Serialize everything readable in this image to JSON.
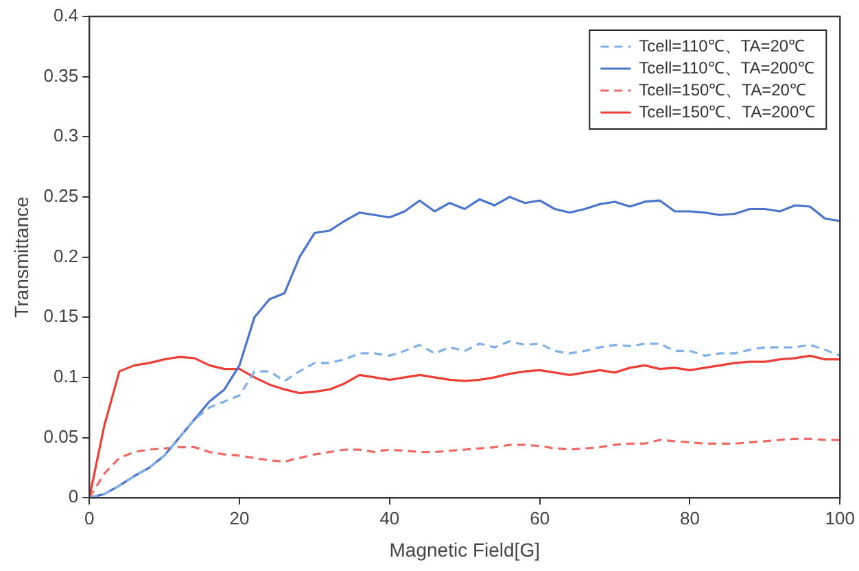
{
  "chart_data": {
    "type": "line",
    "xlabel": "Magnetic Field[G]",
    "ylabel": "Transmittance",
    "x": [
      0,
      2,
      4,
      6,
      8,
      10,
      12,
      14,
      16,
      18,
      20,
      22,
      24,
      26,
      28,
      30,
      32,
      34,
      36,
      38,
      40,
      42,
      44,
      46,
      48,
      50,
      52,
      54,
      56,
      58,
      60,
      62,
      64,
      66,
      68,
      70,
      72,
      74,
      76,
      78,
      80,
      82,
      84,
      86,
      88,
      90,
      92,
      94,
      96,
      98,
      100
    ],
    "series": [
      {
        "name": "Tcell=110℃、TA=20℃",
        "color": "#7fb0e8",
        "line_style": "dashed",
        "values": [
          0,
          0.003,
          0.01,
          0.018,
          0.025,
          0.035,
          0.05,
          0.065,
          0.075,
          0.08,
          0.085,
          0.105,
          0.105,
          0.097,
          0.105,
          0.112,
          0.112,
          0.115,
          0.12,
          0.12,
          0.118,
          0.122,
          0.127,
          0.12,
          0.125,
          0.122,
          0.128,
          0.125,
          0.13,
          0.127,
          0.128,
          0.122,
          0.12,
          0.122,
          0.125,
          0.127,
          0.126,
          0.128,
          0.128,
          0.122,
          0.122,
          0.118,
          0.12,
          0.12,
          0.123,
          0.125,
          0.125,
          0.125,
          0.127,
          0.123,
          0.118
        ]
      },
      {
        "name": "Tcell=110℃、TA=200℃",
        "color": "#4a74cc",
        "line_style": "solid",
        "values": [
          0,
          0.003,
          0.01,
          0.018,
          0.025,
          0.035,
          0.05,
          0.065,
          0.08,
          0.09,
          0.11,
          0.15,
          0.165,
          0.17,
          0.2,
          0.22,
          0.222,
          0.23,
          0.237,
          0.235,
          0.233,
          0.238,
          0.247,
          0.238,
          0.245,
          0.24,
          0.248,
          0.243,
          0.25,
          0.245,
          0.247,
          0.24,
          0.237,
          0.24,
          0.244,
          0.246,
          0.242,
          0.246,
          0.247,
          0.238,
          0.238,
          0.237,
          0.235,
          0.236,
          0.24,
          0.24,
          0.238,
          0.243,
          0.242,
          0.232,
          0.23
        ]
      },
      {
        "name": "Tcell=150℃、TA=20℃",
        "color": "#f06a64",
        "line_style": "dashed",
        "values": [
          0,
          0.02,
          0.033,
          0.038,
          0.04,
          0.041,
          0.042,
          0.042,
          0.038,
          0.036,
          0.035,
          0.033,
          0.031,
          0.03,
          0.033,
          0.036,
          0.038,
          0.04,
          0.04,
          0.038,
          0.04,
          0.039,
          0.038,
          0.038,
          0.039,
          0.04,
          0.041,
          0.042,
          0.044,
          0.044,
          0.043,
          0.041,
          0.04,
          0.041,
          0.042,
          0.044,
          0.045,
          0.045,
          0.048,
          0.047,
          0.046,
          0.045,
          0.045,
          0.045,
          0.046,
          0.047,
          0.048,
          0.049,
          0.049,
          0.048,
          0.048
        ]
      },
      {
        "name": "Tcell=150℃、TA=200℃",
        "color": "#ee3e36",
        "line_style": "solid",
        "values": [
          0,
          0.06,
          0.105,
          0.11,
          0.112,
          0.115,
          0.117,
          0.116,
          0.11,
          0.107,
          0.107,
          0.1,
          0.094,
          0.09,
          0.087,
          0.088,
          0.09,
          0.095,
          0.102,
          0.1,
          0.098,
          0.1,
          0.102,
          0.1,
          0.098,
          0.097,
          0.098,
          0.1,
          0.103,
          0.105,
          0.106,
          0.104,
          0.102,
          0.104,
          0.106,
          0.104,
          0.108,
          0.11,
          0.107,
          0.108,
          0.106,
          0.108,
          0.11,
          0.112,
          0.113,
          0.113,
          0.115,
          0.116,
          0.118,
          0.115,
          0.115
        ]
      }
    ],
    "xlim": [
      0,
      100
    ],
    "xticks": [
      0,
      20,
      40,
      60,
      80,
      100
    ],
    "ylim": [
      0,
      0.4
    ],
    "yticks": [
      0,
      0.05,
      0.1,
      0.15,
      0.2,
      0.25,
      0.3,
      0.35,
      0.4
    ],
    "grid": false,
    "legend": "top right",
    "marker": "none"
  }
}
